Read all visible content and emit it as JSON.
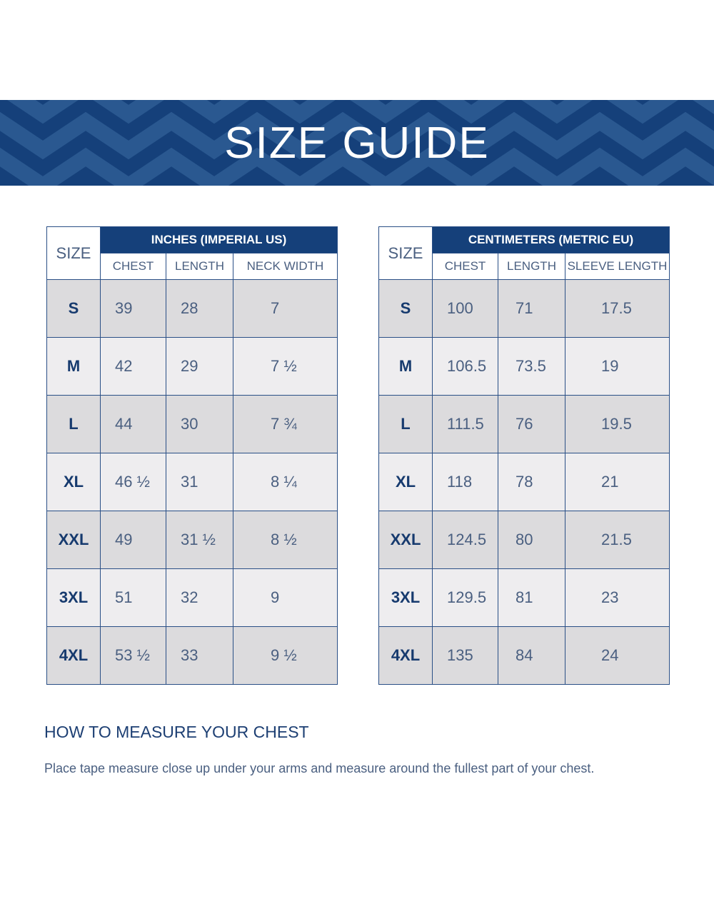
{
  "banner": {
    "title": "SIZE GUIDE"
  },
  "colors": {
    "banner_bg": "#15407a",
    "header_bg": "#15407a",
    "row_dark": "#dcdbdd",
    "row_light": "#eeedef",
    "text_navy": "#1d3f73"
  },
  "inches_table": {
    "size_header": "SIZE",
    "group_header": "INCHES (IMPERIAL US)",
    "columns": [
      "CHEST",
      "LENGTH",
      "NECK WIDTH"
    ],
    "rows": [
      {
        "size": "S",
        "c1": "39",
        "c2": "28",
        "c3": "7"
      },
      {
        "size": "M",
        "c1": "42",
        "c2": "29",
        "c3": "7 ½"
      },
      {
        "size": "L",
        "c1": "44",
        "c2": "30",
        "c3": "7 ¾"
      },
      {
        "size": "XL",
        "c1": "46 ½",
        "c2": "31",
        "c3": "8 ¼"
      },
      {
        "size": "XXL",
        "c1": "49",
        "c2": "31 ½",
        "c3": "8 ½"
      },
      {
        "size": "3XL",
        "c1": "51",
        "c2": "32",
        "c3": "9"
      },
      {
        "size": "4XL",
        "c1": "53 ½",
        "c2": "33",
        "c3": "9 ½"
      }
    ]
  },
  "cm_table": {
    "size_header": "SIZE",
    "group_header": "CENTIMETERS (METRIC EU)",
    "columns": [
      "CHEST",
      "LENGTH",
      "SLEEVE LENGTH"
    ],
    "rows": [
      {
        "size": "S",
        "c1": "100",
        "c2": "71",
        "c3": "17.5"
      },
      {
        "size": "M",
        "c1": "106.5",
        "c2": "73.5",
        "c3": "19"
      },
      {
        "size": "L",
        "c1": "111.5",
        "c2": "76",
        "c3": "19.5"
      },
      {
        "size": "XL",
        "c1": "118",
        "c2": "78",
        "c3": "21"
      },
      {
        "size": "XXL",
        "c1": "124.5",
        "c2": "80",
        "c3": "21.5"
      },
      {
        "size": "3XL",
        "c1": "129.5",
        "c2": "81",
        "c3": "23"
      },
      {
        "size": "4XL",
        "c1": "135",
        "c2": "84",
        "c3": "24"
      }
    ]
  },
  "measure": {
    "title": "HOW TO MEASURE YOUR CHEST",
    "text": "Place tape measure close up under your arms and measure around the fullest part of your chest."
  }
}
